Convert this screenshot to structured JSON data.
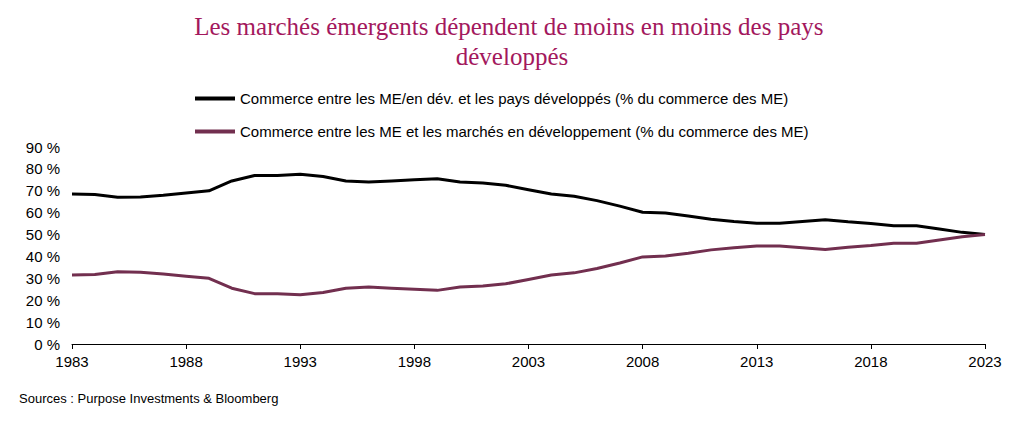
{
  "chart_data": {
    "type": "line",
    "title": "Les marchés émergents dépendent de moins en moins des pays développés",
    "source": "Sources : Purpose Investments & Bloomberg",
    "x": [
      1983,
      1984,
      1985,
      1986,
      1987,
      1988,
      1989,
      1990,
      1991,
      1992,
      1993,
      1994,
      1995,
      1996,
      1997,
      1998,
      1999,
      2000,
      2001,
      2002,
      2003,
      2004,
      2005,
      2006,
      2007,
      2008,
      2009,
      2010,
      2011,
      2012,
      2013,
      2014,
      2015,
      2016,
      2017,
      2018,
      2019,
      2020,
      2021,
      2022,
      2023
    ],
    "series": [
      {
        "name": "Commerce entre les ME/en dév. et les pays développés (% du commerce des ME)",
        "color": "#000000",
        "values": [
          68.5,
          68.3,
          67,
          67.2,
          68,
          69,
          70,
          74.5,
          77,
          77,
          77.5,
          76.5,
          74.5,
          74,
          74.5,
          75,
          75.5,
          74,
          73.5,
          72.5,
          70.5,
          68.5,
          67.5,
          65.5,
          63,
          60.2,
          59.8,
          58.5,
          57,
          56,
          55.2,
          55.2,
          56,
          56.8,
          55.8,
          55,
          54,
          54,
          52.5,
          51,
          50
        ]
      },
      {
        "name": "Commerce entre les ME et les marchés en développement (% du commerce des ME)",
        "color": "#722f4f",
        "values": [
          31.5,
          31.7,
          33,
          32.8,
          32,
          31,
          30,
          25.5,
          23,
          23,
          22.5,
          23.5,
          25.5,
          26,
          25.5,
          25,
          24.5,
          26,
          26.5,
          27.5,
          29.5,
          31.5,
          32.5,
          34.5,
          37,
          39.8,
          40.2,
          41.5,
          43,
          44,
          44.8,
          44.8,
          44,
          43.2,
          44.2,
          45,
          46,
          46,
          47.5,
          49,
          50
        ]
      }
    ],
    "xlim": [
      1983,
      2023
    ],
    "xticks": [
      1983,
      1988,
      1993,
      1998,
      2003,
      2008,
      2013,
      2018,
      2023
    ],
    "ylim": [
      0,
      90
    ],
    "yticks": [
      {
        "value": 0,
        "label": "0 %"
      },
      {
        "value": 10,
        "label": "10 %"
      },
      {
        "value": 20,
        "label": "20 %"
      },
      {
        "value": 30,
        "label": "30 %"
      },
      {
        "value": 40,
        "label": "40 %"
      },
      {
        "value": 50,
        "label": "50 %"
      },
      {
        "value": 60,
        "label": "60 %"
      },
      {
        "value": 70,
        "label": "70 %"
      },
      {
        "value": 80,
        "label": "80 %"
      },
      {
        "value": 90,
        "label": "90 %"
      }
    ],
    "grid": false,
    "legend": "top"
  }
}
